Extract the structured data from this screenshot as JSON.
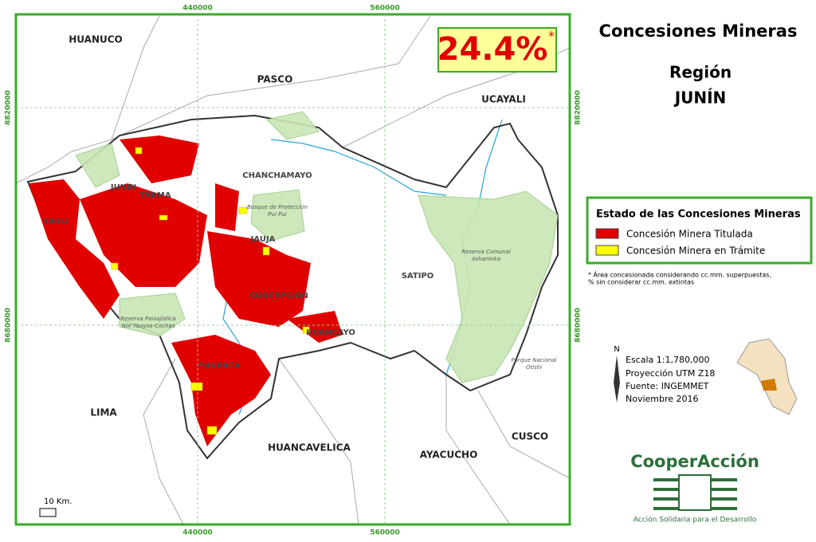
{
  "map": {
    "grid_labels": {
      "top": [
        "440000",
        "560000"
      ],
      "bottom": [
        "440000",
        "560000"
      ],
      "left": [
        "8820000",
        "8680000"
      ],
      "right": [
        "8820000",
        "8680000"
      ]
    },
    "percentage": "24.4%",
    "percentage_note": "*",
    "regions": [
      "HUANUCO",
      "PASCO",
      "UCAYALI",
      "JUNIN",
      "TARMA",
      "CHANCHAMAYO",
      "YAULI",
      "JAUJA",
      "CONCEPCION",
      "SATIPO",
      "HUANCAYO",
      "CHUPACA",
      "LIMA",
      "HUANCAVELICA",
      "AYACUCHO",
      "CUSCO"
    ],
    "protected_areas": [
      [
        "Bosque de Protección",
        "Pui Pui"
      ],
      [
        "Reserva Comunal",
        "Ashaninka"
      ],
      [
        "Reserva Paisajística",
        "Nor Yauyos-Cochas"
      ],
      [
        "Parque Nacional",
        "Otishi"
      ]
    ],
    "scale_bar": "10 Km."
  },
  "title": {
    "line1": "Concesiones Mineras",
    "line2": "Región",
    "line3": "JUNÍN"
  },
  "legend": {
    "title": "Estado de las Concesiones Mineras",
    "items": [
      "Concesión Minera Titulada",
      "Concesión Minera en Trámite"
    ]
  },
  "footnote": [
    "* Área concesionada considerando cc.mm. superpuestas,",
    "% sin considerar cc.mm. extintas"
  ],
  "map_info": {
    "north": "N",
    "lines": [
      "Escala 1:1,780,000",
      "Proyección UTM Z18",
      "Fuente: INGEMMET",
      "Noviembre 2016"
    ]
  },
  "logo": {
    "name": "CooperAcción",
    "tagline": "Acción Solidaria para el Desarrollo"
  }
}
